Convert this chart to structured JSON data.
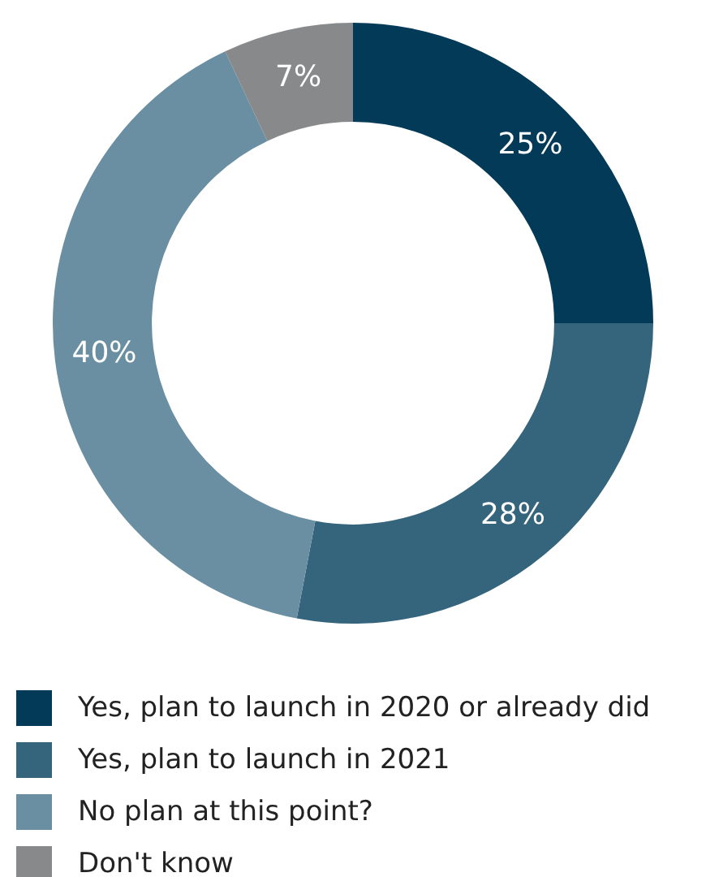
{
  "chart_data": {
    "type": "donut",
    "categories": [
      "Yes, plan to launch in 2020 or already did",
      "Yes, plan to launch in 2021",
      "No plan at this point?",
      "Don't know"
    ],
    "values": [
      25,
      28,
      40,
      7
    ],
    "colors": [
      "#023a58",
      "#35657c",
      "#6b8fa2",
      "#88898b"
    ],
    "value_labels": [
      "25%",
      "28%",
      "40%",
      "7%"
    ],
    "legend": "bottom"
  }
}
